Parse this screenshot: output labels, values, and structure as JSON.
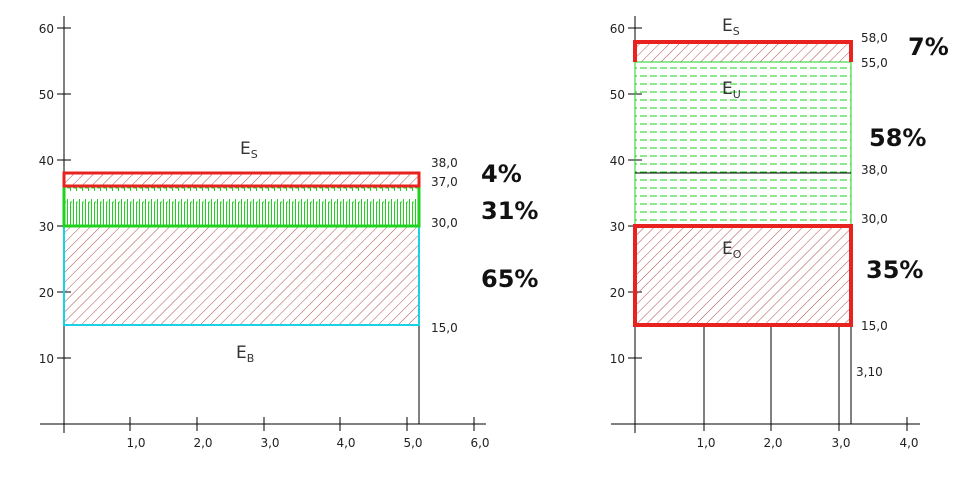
{
  "left": {
    "y_ticks": [
      "10",
      "20",
      "30",
      "40",
      "50",
      "60"
    ],
    "x_ticks": [
      "1,0",
      "2,0",
      "3,0",
      "4,0",
      "5,0",
      "6,0"
    ],
    "values": {
      "top": "38,0",
      "b1": "37,0",
      "b2": "30,0",
      "base": "15,0"
    },
    "percents": {
      "s": "4%",
      "u": "31%",
      "o": "65%"
    },
    "labels": {
      "top_main": "E",
      "top_sub": "S",
      "bottom_main": "E",
      "bottom_sub": "B"
    }
  },
  "right": {
    "y_ticks": [
      "10",
      "20",
      "30",
      "40",
      "50",
      "60"
    ],
    "x_ticks": [
      "1,0",
      "2,0",
      "3,0",
      "4,0"
    ],
    "values": {
      "top": "58,0",
      "b1": "55,0",
      "mid": "38,0",
      "b2": "30,0",
      "base": "15,0",
      "width": "3,10"
    },
    "percents": {
      "s": "7%",
      "u": "58%",
      "o": "35%"
    },
    "labels": {
      "s_main": "E",
      "s_sub": "S",
      "u_main": "E",
      "u_sub": "U",
      "o_main": "E",
      "o_sub": "O"
    }
  },
  "colors": {
    "red": "#e8231f",
    "green": "#1ed21e",
    "cyan": "#19d2e6",
    "hatch": "#b25050"
  }
}
